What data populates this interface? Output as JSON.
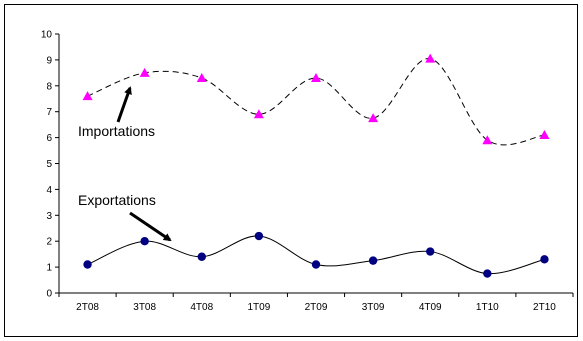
{
  "chart_data": {
    "type": "line",
    "categories": [
      "2T08",
      "3T08",
      "4T08",
      "1T09",
      "2T09",
      "3T09",
      "4T09",
      "1T10",
      "2T10"
    ],
    "ylim": [
      0,
      10
    ],
    "yticks": [
      "0",
      "1",
      "2",
      "3",
      "4",
      "5",
      "6",
      "7",
      "8",
      "9",
      "10"
    ],
    "grid": false,
    "series": [
      {
        "name": "Importations",
        "values": [
          7.6,
          8.5,
          8.3,
          6.9,
          8.3,
          6.75,
          9.05,
          5.9,
          6.1
        ],
        "color": "#ff00ff",
        "marker": "triangle",
        "line_style": "dashed"
      },
      {
        "name": "Exportations",
        "values": [
          1.1,
          2.0,
          1.4,
          2.2,
          1.1,
          1.25,
          1.6,
          0.75,
          1.3
        ],
        "color": "#000080",
        "marker": "circle",
        "line_style": "solid"
      }
    ],
    "annotations": [
      {
        "text": "Importations",
        "series": 0
      },
      {
        "text": "Exportations",
        "series": 1
      }
    ]
  }
}
